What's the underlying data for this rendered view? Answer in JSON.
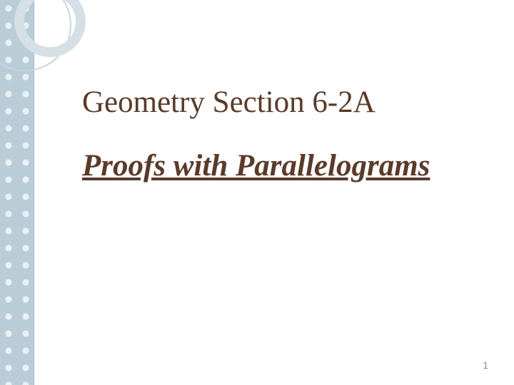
{
  "slide": {
    "title": "Geometry Section 6-2A",
    "subtitle": "Proofs with Parallelograms",
    "page_number": "1"
  },
  "styling": {
    "background_color": "#ffffff",
    "sidebar": {
      "width": 48,
      "background_color": "#b8cdd8",
      "pattern_color": "#ffffff",
      "border_color": "#a0b8c4"
    },
    "decorative_circles": {
      "outer": {
        "diameter": 130,
        "border_width": 2,
        "color": "#c8d6de"
      },
      "inner": {
        "diameter": 100,
        "border_width": 14,
        "color": "#d5e0e6"
      }
    },
    "title": {
      "font_family": "Georgia",
      "font_size": 43,
      "font_weight": "normal",
      "color": "#5a3a2a"
    },
    "subtitle": {
      "font_family": "Georgia",
      "font_size": 43,
      "font_style": "italic",
      "text_decoration": "underline",
      "color": "#5a3a2a"
    },
    "page_number": {
      "font_size": 14,
      "color": "#8a8a8a"
    }
  }
}
